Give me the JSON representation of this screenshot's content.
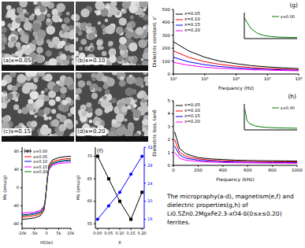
{
  "micrographs": [
    {
      "label": "(a)x=0.05"
    },
    {
      "label": "(b)x=0.10"
    },
    {
      "label": "(c)x=0.15"
    },
    {
      "label": "(d)x=0.20"
    }
  ],
  "chart_data": [
    {
      "type": "line",
      "title": "(e)",
      "x_label": "H(Oe)",
      "y_label": "Ms (emu/g)",
      "x": [
        -10000,
        -7500,
        -5000,
        -2500,
        -1000,
        -500,
        0,
        500,
        1000,
        2500,
        5000,
        7500,
        10000
      ],
      "series": [
        {
          "name": "x=0.00",
          "color": "#000000",
          "values": [
            -70,
            -69,
            -67,
            -62,
            -50,
            -30,
            0,
            30,
            50,
            62,
            67,
            69,
            70
          ]
        },
        {
          "name": "x=0.05",
          "color": "#ff0000",
          "values": [
            -65,
            -64,
            -62,
            -58,
            -46,
            -28,
            0,
            28,
            46,
            58,
            62,
            64,
            65
          ]
        },
        {
          "name": "x=0.10",
          "color": "#0000ff",
          "values": [
            -60,
            -59,
            -57,
            -53,
            -43,
            -26,
            0,
            26,
            43,
            53,
            57,
            59,
            60
          ]
        },
        {
          "name": "x=0.15",
          "color": "#ff00ff",
          "values": [
            -56,
            -55,
            -54,
            -50,
            -40,
            -24,
            0,
            24,
            40,
            50,
            54,
            55,
            56
          ]
        },
        {
          "name": "x=0.20",
          "color": "#008000",
          "values": [
            -62,
            -61,
            -59,
            -55,
            -44,
            -27,
            0,
            27,
            44,
            55,
            59,
            61,
            62
          ]
        }
      ],
      "xlim": [
        -10000,
        10000
      ],
      "xticks": [
        {
          "value": -10000,
          "label": "-10k"
        },
        {
          "value": -5000,
          "label": "-5k"
        },
        0,
        {
          "value": 5000,
          "label": "5k"
        },
        {
          "value": 10000,
          "label": "10k"
        }
      ],
      "ylim": [
        -90,
        90
      ],
      "yticks": [
        -80,
        -40,
        0,
        40,
        80
      ],
      "legend": "upper left"
    },
    {
      "type": "line",
      "title": "(f)",
      "x_label": "X",
      "y_label": "Ms (emu/g)",
      "x": [
        0,
        0.05,
        0.1,
        0.15,
        0.2
      ],
      "series": [
        {
          "color": "#000000",
          "marker": "square",
          "values": [
            70,
            65,
            60,
            56,
            62
          ]
        },
        {
          "color": "#0000ff",
          "marker": "circle",
          "axis": "y2",
          "values": [
            16,
            19,
            22,
            26,
            30
          ]
        }
      ],
      "xlim": [
        -0.01,
        0.21
      ],
      "xticks": [
        {
          "value": 0,
          "label": "0.00"
        },
        0.05,
        {
          "value": 0.1,
          "label": "0.10"
        },
        0.15,
        {
          "value": 0.2,
          "label": "0.20"
        }
      ],
      "ylim": [
        54,
        72
      ],
      "yticks": [
        55,
        60,
        65,
        70
      ],
      "y2lim": [
        14,
        32
      ],
      "y2ticks": [
        16,
        20,
        24,
        28,
        32
      ]
    },
    {
      "type": "line",
      "title": "(g)",
      "x_label": "Frequency (Hz)",
      "y_label": "Dielectric constant, ε'",
      "log": "x",
      "x": [
        100,
        300,
        1000,
        3000,
        10000,
        30000,
        100000,
        300000,
        1000000
      ],
      "series": [
        {
          "name": "x=0.05",
          "color": "#000000",
          "values": [
            250,
            180,
            130,
            100,
            80,
            65,
            55,
            48,
            42
          ]
        },
        {
          "name": "x=0.10",
          "color": "#ff0000",
          "values": [
            180,
            130,
            95,
            75,
            60,
            50,
            43,
            38,
            34
          ]
        },
        {
          "name": "x=0.15",
          "color": "#0000ff",
          "values": [
            130,
            95,
            72,
            58,
            48,
            41,
            36,
            32,
            29
          ]
        },
        {
          "name": "x=0.20",
          "color": "#ff00ff",
          "values": [
            90,
            68,
            53,
            44,
            38,
            33,
            30,
            27,
            25
          ]
        }
      ],
      "xlim": [
        100,
        1000000
      ],
      "xticks": [
        {
          "value": 100,
          "label": "10²"
        },
        {
          "value": 1000,
          "label": "10³"
        },
        {
          "value": 10000,
          "label": "10⁴"
        },
        {
          "value": 100000,
          "label": "10⁵"
        },
        {
          "value": 1000000,
          "label": "10⁶"
        }
      ],
      "ylim": [
        0,
        500
      ],
      "yticks": [
        0,
        100,
        200,
        300,
        400,
        500
      ],
      "legend": "upper left",
      "inset": {
        "type": "line",
        "log": "x",
        "tick_labels": false,
        "legend": "upper right",
        "x": [
          100,
          300,
          1000,
          3000,
          10000,
          30000,
          100000,
          300000,
          1000000
        ],
        "series": [
          {
            "name": "x=0.00",
            "color": "#008000",
            "values": [
              40000,
              20000,
              10000,
              6000,
              4000,
              3000,
              2500,
              2200,
              2000
            ]
          }
        ],
        "xlim": [
          100,
          1000000
        ],
        "ylim": [
          0,
          50000
        ]
      }
    },
    {
      "type": "line",
      "title": "(h)",
      "x_label": "Frequency (kHz)",
      "y_label": "Dielectric loss, tanδ",
      "x": [
        10,
        50,
        100,
        200,
        300,
        400,
        500,
        600,
        700,
        800,
        900,
        1000
      ],
      "series": [
        {
          "name": "x=0.05",
          "color": "#000000",
          "values": [
            2.6,
            1.3,
            0.9,
            0.6,
            0.5,
            0.45,
            0.4,
            0.38,
            0.36,
            0.35,
            0.34,
            0.33
          ]
        },
        {
          "name": "x=0.10",
          "color": "#ff0000",
          "values": [
            2.0,
            1.0,
            0.7,
            0.5,
            0.4,
            0.35,
            0.32,
            0.3,
            0.29,
            0.28,
            0.27,
            0.27
          ]
        },
        {
          "name": "x=0.15",
          "color": "#0000ff",
          "values": [
            1.5,
            0.8,
            0.55,
            0.4,
            0.32,
            0.28,
            0.26,
            0.24,
            0.23,
            0.22,
            0.22,
            0.21
          ]
        },
        {
          "name": "x=0.20",
          "color": "#ff00ff",
          "values": [
            1.0,
            0.55,
            0.4,
            0.3,
            0.25,
            0.22,
            0.2,
            0.19,
            0.18,
            0.17,
            0.17,
            0.16
          ]
        }
      ],
      "xlim": [
        0,
        1000
      ],
      "xticks": [
        0,
        200,
        400,
        600,
        800,
        1000
      ],
      "ylim": [
        0,
        5
      ],
      "yticks": [
        0,
        1,
        2,
        3,
        4,
        5
      ],
      "legend": "upper left",
      "inset": {
        "type": "line",
        "tick_labels": false,
        "legend": "upper right",
        "x": [
          10,
          50,
          100,
          200,
          300,
          400,
          500,
          600,
          700,
          800,
          900,
          1000
        ],
        "series": [
          {
            "name": "x=0.00",
            "color": "#008000",
            "values": [
              20,
              9,
              6,
              4,
              3,
              2.5,
              2.2,
              2,
              1.9,
              1.8,
              1.7,
              1.6
            ]
          }
        ],
        "xlim": [
          0,
          1000
        ],
        "ylim": [
          0,
          25
        ]
      }
    }
  ],
  "caption": "The micropraphy(a-d), magnetism(e,f) and dielectric properties(g,h) of Li0.5Zn0.2MgxFe2.3-xO4-δ(0≤x≤0.20) ferrites."
}
